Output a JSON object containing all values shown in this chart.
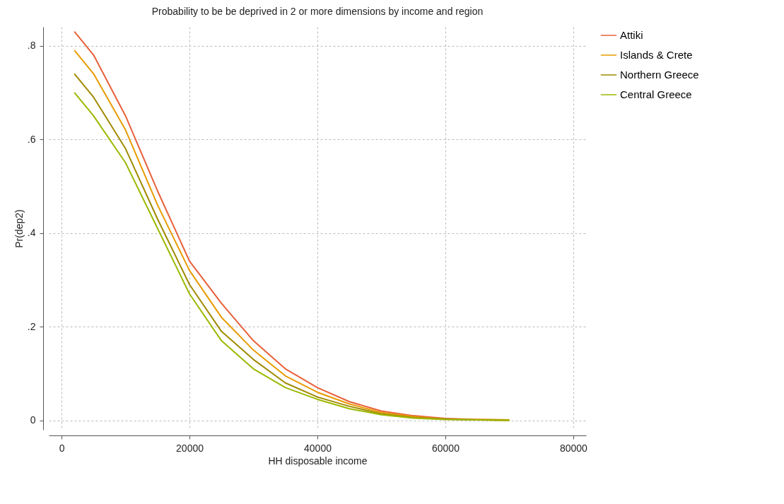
{
  "chart_data": {
    "type": "line",
    "title": "Probability to be be deprived in 2 or more dimensions by income and region",
    "xlabel": "HH disposable income",
    "ylabel": "Pr(dep2)",
    "x": [
      2000,
      5000,
      10000,
      15000,
      20000,
      25000,
      30000,
      35000,
      40000,
      45000,
      50000,
      55000,
      60000,
      65000,
      70000
    ],
    "series": [
      {
        "name": "Attiki",
        "color": "#e8603a",
        "values": [
          0.83,
          0.78,
          0.65,
          0.49,
          0.34,
          0.25,
          0.17,
          0.11,
          0.07,
          0.04,
          0.02,
          0.01,
          0.004,
          0.002,
          0.001
        ]
      },
      {
        "name": "Islands & Crete",
        "color": "#e89b00",
        "values": [
          0.79,
          0.74,
          0.62,
          0.46,
          0.32,
          0.22,
          0.15,
          0.095,
          0.06,
          0.035,
          0.017,
          0.008,
          0.003,
          0.002,
          0.001
        ]
      },
      {
        "name": "Northern Greece",
        "color": "#a08a00",
        "values": [
          0.74,
          0.69,
          0.58,
          0.43,
          0.29,
          0.19,
          0.13,
          0.08,
          0.05,
          0.03,
          0.014,
          0.006,
          0.003,
          0.001,
          0
        ]
      },
      {
        "name": "Central Greece",
        "color": "#9cb800",
        "values": [
          0.7,
          0.65,
          0.55,
          0.41,
          0.27,
          0.17,
          0.11,
          0.07,
          0.045,
          0.025,
          0.012,
          0.005,
          0.002,
          0.001,
          0
        ]
      }
    ],
    "xlim": [
      -2000,
      82000
    ],
    "xticks": [
      0,
      20000,
      40000,
      60000,
      80000
    ],
    "ylim": [
      -0.02,
      0.84
    ],
    "yticks": [
      0,
      {
        "value": 0.2,
        "label": ".2"
      },
      {
        "value": 0.4,
        "label": ".4"
      },
      {
        "value": 0.6,
        "label": ".6"
      },
      {
        "value": 0.8,
        "label": ".8"
      }
    ],
    "grid": true,
    "legend": "right"
  }
}
